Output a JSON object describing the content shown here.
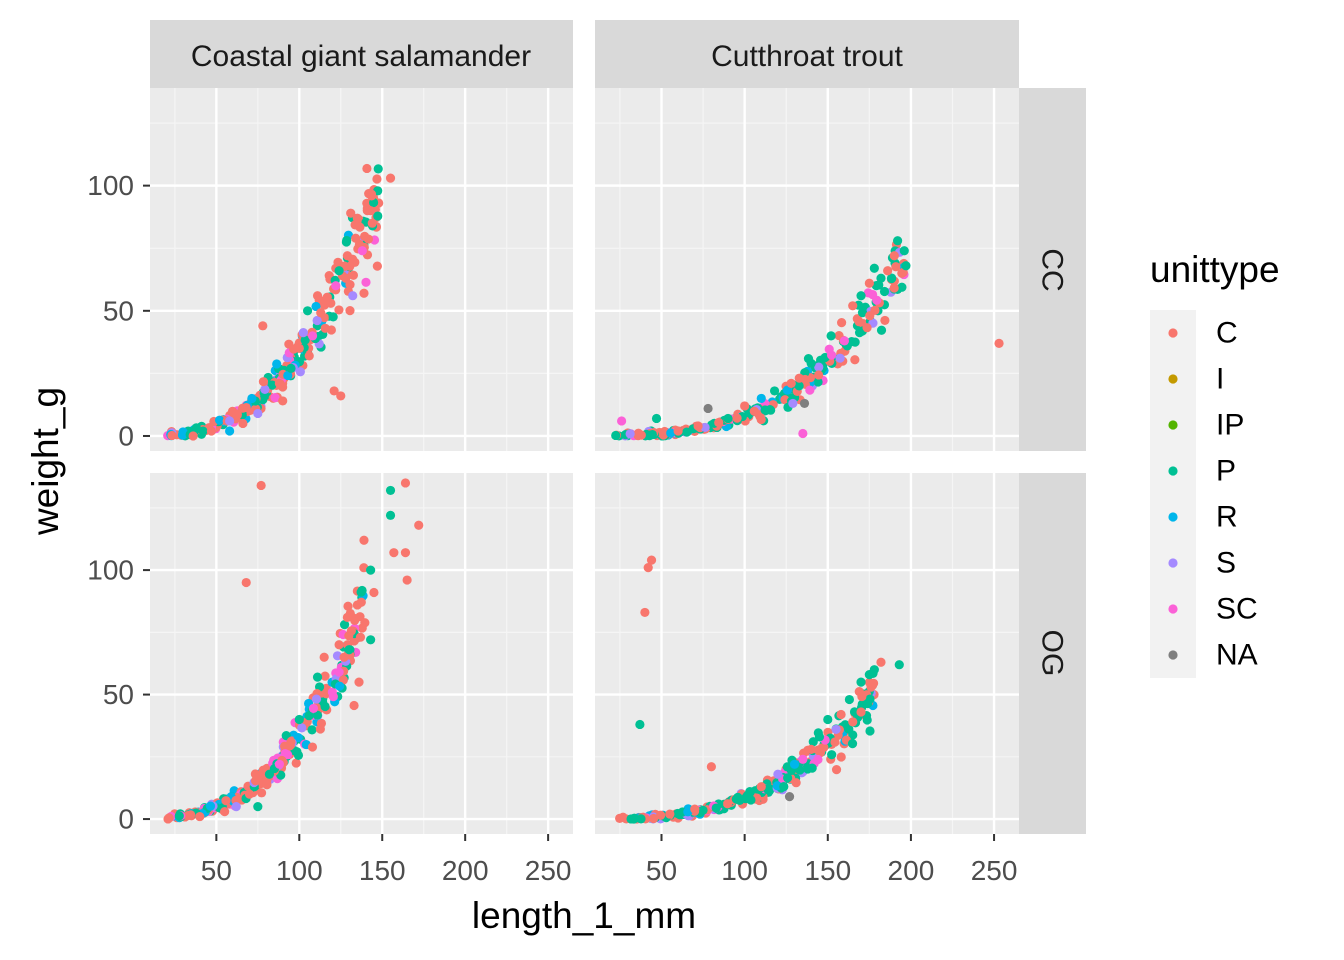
{
  "chart_data": {
    "type": "scatter",
    "facet_columns": [
      "Coastal giant salamander",
      "Cutthroat trout"
    ],
    "facet_rows": [
      "CC",
      "OG"
    ],
    "xlabel": "length_1_mm",
    "ylabel": "weight_g",
    "xlim": [
      10,
      265
    ],
    "ylim": [
      -6,
      139
    ],
    "x_ticks": [
      50,
      100,
      150,
      200,
      250
    ],
    "y_ticks": [
      0,
      50,
      100
    ],
    "grid": true,
    "legend": {
      "title": "unittype",
      "placement": "right",
      "entries": [
        {
          "label": "C",
          "color": "#F8766D"
        },
        {
          "label": "I",
          "color": "#C49A00"
        },
        {
          "label": "IP",
          "color": "#53B400"
        },
        {
          "label": "P",
          "color": "#00C094"
        },
        {
          "label": "R",
          "color": "#00B6EB"
        },
        {
          "label": "S",
          "color": "#A58AFF"
        },
        {
          "label": "SC",
          "color": "#FB61D7"
        },
        {
          "label": "NA",
          "color": "#7F7F7F"
        }
      ]
    },
    "panels": [
      {
        "species": "Coastal giant salamander",
        "section": "CC",
        "trend": {
          "a": 8.2e-05,
          "b": 2.8,
          "xmin": 20,
          "xmax": 148
        },
        "points": [
          {
            "x": 155,
            "y": 103,
            "unit": "C"
          },
          {
            "x": 143,
            "y": 90,
            "unit": "C"
          },
          {
            "x": 141,
            "y": 90,
            "unit": "C"
          },
          {
            "x": 131,
            "y": 89,
            "unit": "C"
          },
          {
            "x": 135,
            "y": 87,
            "unit": "C"
          },
          {
            "x": 144,
            "y": 85,
            "unit": "C"
          },
          {
            "x": 138,
            "y": 74,
            "unit": "SC"
          },
          {
            "x": 134,
            "y": 79,
            "unit": "C"
          },
          {
            "x": 129,
            "y": 72,
            "unit": "C"
          },
          {
            "x": 122,
            "y": 67,
            "unit": "C"
          },
          {
            "x": 126,
            "y": 64,
            "unit": "C"
          },
          {
            "x": 124,
            "y": 66,
            "unit": "P"
          },
          {
            "x": 139,
            "y": 57,
            "unit": "C"
          },
          {
            "x": 128,
            "y": 63,
            "unit": "C"
          },
          {
            "x": 111,
            "y": 56,
            "unit": "C"
          },
          {
            "x": 119,
            "y": 53,
            "unit": "C"
          },
          {
            "x": 122,
            "y": 60,
            "unit": "SC"
          },
          {
            "x": 105,
            "y": 50,
            "unit": "P"
          },
          {
            "x": 78,
            "y": 44,
            "unit": "C"
          },
          {
            "x": 106,
            "y": 32,
            "unit": "C"
          },
          {
            "x": 121,
            "y": 18,
            "unit": "C"
          },
          {
            "x": 125,
            "y": 16,
            "unit": "C"
          },
          {
            "x": 108,
            "y": 40,
            "unit": "SC"
          },
          {
            "x": 100,
            "y": 35,
            "unit": "C"
          },
          {
            "x": 95,
            "y": 27,
            "unit": "P"
          },
          {
            "x": 88,
            "y": 21,
            "unit": "C"
          },
          {
            "x": 90,
            "y": 14,
            "unit": "C"
          },
          {
            "x": 75,
            "y": 9,
            "unit": "S"
          },
          {
            "x": 66,
            "y": 5,
            "unit": "C"
          },
          {
            "x": 58,
            "y": 2,
            "unit": "R"
          },
          {
            "x": 47,
            "y": 2,
            "unit": "C"
          },
          {
            "x": 58,
            "y": 6,
            "unit": "S"
          },
          {
            "x": 36,
            "y": 0,
            "unit": "C"
          }
        ]
      },
      {
        "species": "Cutthroat trout",
        "section": "CC",
        "trend": {
          "a": 3.2e-06,
          "b": 3.2,
          "xmin": 22,
          "xmax": 196
        },
        "points": [
          {
            "x": 192,
            "y": 78,
            "unit": "P"
          },
          {
            "x": 196,
            "y": 74,
            "unit": "P"
          },
          {
            "x": 190,
            "y": 72,
            "unit": "C"
          },
          {
            "x": 197,
            "y": 68,
            "unit": "P"
          },
          {
            "x": 178,
            "y": 67,
            "unit": "P"
          },
          {
            "x": 186,
            "y": 66,
            "unit": "C"
          },
          {
            "x": 175,
            "y": 61,
            "unit": "C"
          },
          {
            "x": 182,
            "y": 63,
            "unit": "P"
          },
          {
            "x": 170,
            "y": 56,
            "unit": "P"
          },
          {
            "x": 165,
            "y": 52,
            "unit": "C"
          },
          {
            "x": 253,
            "y": 37,
            "unit": "C"
          },
          {
            "x": 135,
            "y": 1,
            "unit": "SC"
          },
          {
            "x": 136,
            "y": 13,
            "unit": "NA"
          },
          {
            "x": 129,
            "y": 13,
            "unit": "S"
          },
          {
            "x": 118,
            "y": 18,
            "unit": "P"
          },
          {
            "x": 78,
            "y": 11,
            "unit": "NA"
          },
          {
            "x": 47,
            "y": 7,
            "unit": "P"
          },
          {
            "x": 26,
            "y": 6,
            "unit": "SC"
          },
          {
            "x": 128,
            "y": 21,
            "unit": "C"
          },
          {
            "x": 140,
            "y": 29,
            "unit": "P"
          },
          {
            "x": 152,
            "y": 40,
            "unit": "P"
          },
          {
            "x": 100,
            "y": 12,
            "unit": "C"
          },
          {
            "x": 90,
            "y": 7,
            "unit": "P"
          },
          {
            "x": 72,
            "y": 4,
            "unit": "C"
          },
          {
            "x": 60,
            "y": 2,
            "unit": "C"
          },
          {
            "x": 110,
            "y": 15,
            "unit": "R"
          },
          {
            "x": 160,
            "y": 38,
            "unit": "SC"
          }
        ]
      },
      {
        "species": "Coastal giant salamander",
        "section": "OG",
        "trend": {
          "a": 8.2e-05,
          "b": 2.8,
          "xmin": 20,
          "xmax": 140
        },
        "points": [
          {
            "x": 77,
            "y": 134,
            "unit": "C"
          },
          {
            "x": 164,
            "y": 135,
            "unit": "C"
          },
          {
            "x": 155,
            "y": 132,
            "unit": "P"
          },
          {
            "x": 172,
            "y": 118,
            "unit": "C"
          },
          {
            "x": 155,
            "y": 122,
            "unit": "P"
          },
          {
            "x": 139,
            "y": 112,
            "unit": "C"
          },
          {
            "x": 157,
            "y": 107,
            "unit": "C"
          },
          {
            "x": 164,
            "y": 107,
            "unit": "C"
          },
          {
            "x": 143,
            "y": 100,
            "unit": "P"
          },
          {
            "x": 68,
            "y": 95,
            "unit": "C"
          },
          {
            "x": 165,
            "y": 96,
            "unit": "C"
          },
          {
            "x": 145,
            "y": 91,
            "unit": "C"
          },
          {
            "x": 135,
            "y": 86,
            "unit": "C"
          },
          {
            "x": 129,
            "y": 81,
            "unit": "C"
          },
          {
            "x": 143,
            "y": 72,
            "unit": "P"
          },
          {
            "x": 130,
            "y": 68,
            "unit": "P"
          },
          {
            "x": 127,
            "y": 65,
            "unit": "C"
          },
          {
            "x": 124,
            "y": 70,
            "unit": "C"
          },
          {
            "x": 115,
            "y": 65,
            "unit": "C"
          },
          {
            "x": 124,
            "y": 59,
            "unit": "SC"
          },
          {
            "x": 111,
            "y": 57,
            "unit": "P"
          },
          {
            "x": 136,
            "y": 55,
            "unit": "C"
          },
          {
            "x": 100,
            "y": 40,
            "unit": "P"
          },
          {
            "x": 95,
            "y": 31,
            "unit": "C"
          },
          {
            "x": 82,
            "y": 18,
            "unit": "P"
          },
          {
            "x": 88,
            "y": 22,
            "unit": "SC"
          },
          {
            "x": 70,
            "y": 10,
            "unit": "C"
          },
          {
            "x": 75,
            "y": 5,
            "unit": "P"
          },
          {
            "x": 55,
            "y": 3,
            "unit": "C"
          },
          {
            "x": 62,
            "y": 5,
            "unit": "S"
          },
          {
            "x": 40,
            "y": 1,
            "unit": "C"
          }
        ]
      },
      {
        "species": "Cutthroat trout",
        "section": "OG",
        "trend": {
          "a": 3.2e-06,
          "b": 3.2,
          "xmin": 22,
          "xmax": 178
        },
        "points": [
          {
            "x": 44,
            "y": 104,
            "unit": "C"
          },
          {
            "x": 42,
            "y": 101,
            "unit": "C"
          },
          {
            "x": 40,
            "y": 83,
            "unit": "C"
          },
          {
            "x": 37,
            "y": 38,
            "unit": "P"
          },
          {
            "x": 193,
            "y": 62,
            "unit": "P"
          },
          {
            "x": 182,
            "y": 63,
            "unit": "C"
          },
          {
            "x": 178,
            "y": 60,
            "unit": "P"
          },
          {
            "x": 175,
            "y": 58,
            "unit": "P"
          },
          {
            "x": 170,
            "y": 55,
            "unit": "P"
          },
          {
            "x": 176,
            "y": 53,
            "unit": "C"
          },
          {
            "x": 163,
            "y": 48,
            "unit": "P"
          },
          {
            "x": 170,
            "y": 43,
            "unit": "C"
          },
          {
            "x": 158,
            "y": 42,
            "unit": "C"
          },
          {
            "x": 150,
            "y": 40,
            "unit": "P"
          },
          {
            "x": 145,
            "y": 33,
            "unit": "P"
          },
          {
            "x": 140,
            "y": 28,
            "unit": "C"
          },
          {
            "x": 130,
            "y": 22,
            "unit": "R"
          },
          {
            "x": 127,
            "y": 9,
            "unit": "NA"
          },
          {
            "x": 80,
            "y": 21,
            "unit": "C"
          },
          {
            "x": 110,
            "y": 13,
            "unit": "C"
          },
          {
            "x": 95,
            "y": 8,
            "unit": "P"
          },
          {
            "x": 70,
            "y": 4,
            "unit": "C"
          },
          {
            "x": 55,
            "y": 2,
            "unit": "C"
          },
          {
            "x": 120,
            "y": 18,
            "unit": "S"
          },
          {
            "x": 135,
            "y": 24,
            "unit": "SC"
          },
          {
            "x": 155,
            "y": 36,
            "unit": "S"
          }
        ]
      }
    ]
  }
}
